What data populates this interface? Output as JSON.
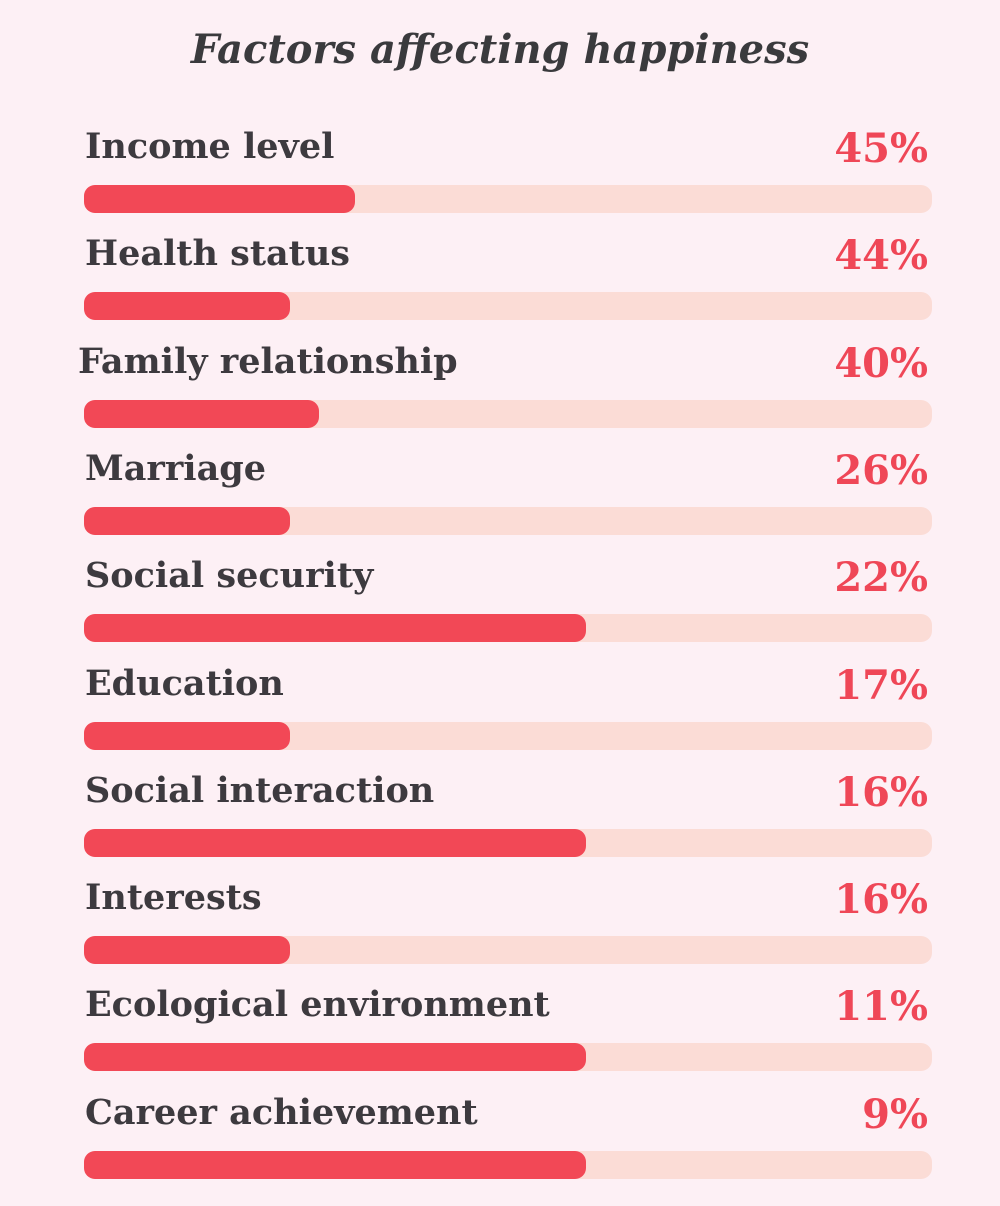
{
  "chart_data": {
    "type": "bar",
    "title": "Factors affecting happiness",
    "xlabel": "",
    "ylabel": "",
    "categories": [
      "Income level",
      "Health status",
      "Family relationship",
      "Marriage",
      "Social security",
      "Education",
      "Social interaction",
      "Interests",
      "Ecological environment",
      "Career achievement"
    ],
    "value_labels": [
      "45%",
      "44%",
      "40%",
      "26%",
      "22%",
      "17%",
      "16%",
      "16%",
      "11%",
      "9%"
    ],
    "values": [
      45,
      44,
      40,
      26,
      22,
      17,
      16,
      16,
      11,
      9
    ],
    "bar_fill_fraction": [
      0.32,
      0.243,
      0.277,
      0.243,
      0.592,
      0.243,
      0.592,
      0.243,
      0.592,
      0.592
    ],
    "orientation": "horizontal",
    "grid": false,
    "colors": {
      "bar": "#f24856",
      "track": "#fbdcd6",
      "value_text": "#ef4757",
      "label_text": "#3d3a3f",
      "background": "#fdf0f5"
    }
  }
}
